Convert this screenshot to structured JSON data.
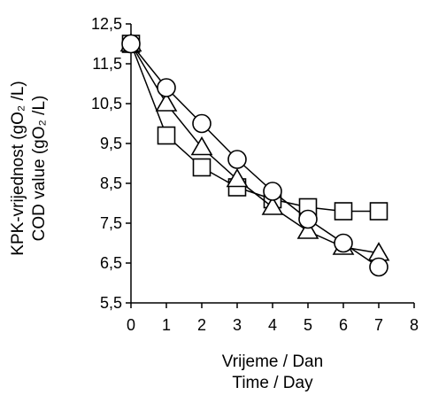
{
  "chart_data": {
    "type": "line",
    "xlabel_lines": [
      "Vrijeme / Dan",
      "Time / Day"
    ],
    "ylabel_lines": [
      "KPK-vrijednost (gO₂ /L)",
      "COD value (gO₂ /L)"
    ],
    "xlim": [
      0,
      8
    ],
    "ylim": [
      5.5,
      12.5
    ],
    "xticks": [
      0,
      1,
      2,
      3,
      4,
      5,
      6,
      7,
      8
    ],
    "xtick_labels": [
      "0",
      "1",
      "2",
      "3",
      "4",
      "5",
      "6",
      "7",
      "8"
    ],
    "yticks": [
      5.5,
      6.5,
      7.5,
      8.5,
      9.5,
      10.5,
      11.5,
      12.5
    ],
    "ytick_labels": [
      "5,5",
      "6,5",
      "7,5",
      "8,5",
      "9,5",
      "10,5",
      "11,5",
      "12,5"
    ],
    "grid": false,
    "series": [
      {
        "marker": "square",
        "x": [
          0,
          1,
          2,
          3,
          4,
          5,
          6,
          7
        ],
        "values": [
          12.0,
          9.7,
          8.9,
          8.4,
          8.1,
          7.9,
          7.8,
          7.8
        ]
      },
      {
        "marker": "triangle",
        "x": [
          0,
          1,
          2,
          3,
          4,
          5,
          6,
          7
        ],
        "values": [
          12.0,
          10.5,
          9.4,
          8.6,
          7.9,
          7.3,
          6.9,
          6.75
        ]
      },
      {
        "marker": "circle",
        "x": [
          0,
          1,
          2,
          3,
          4,
          5,
          6,
          7
        ],
        "values": [
          12.0,
          10.9,
          10.0,
          9.1,
          8.3,
          7.6,
          7.0,
          6.4
        ]
      }
    ]
  }
}
